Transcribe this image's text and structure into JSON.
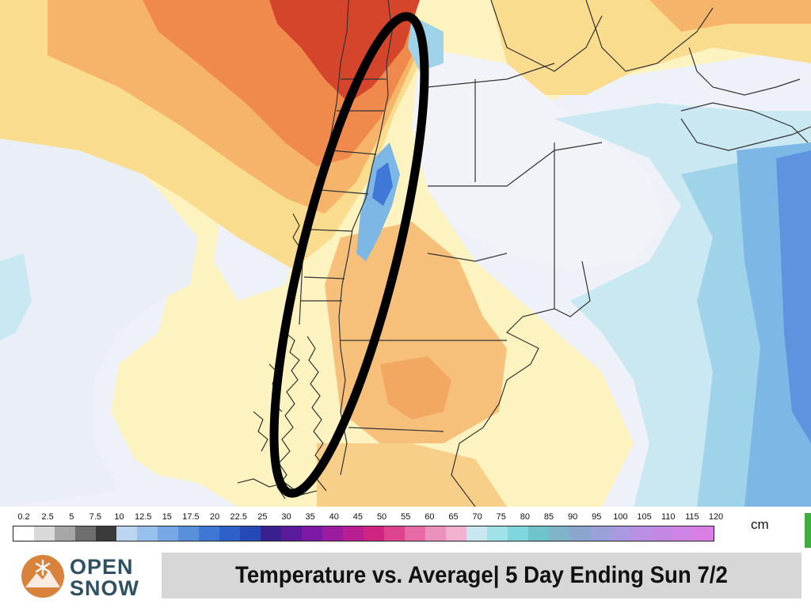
{
  "map": {
    "region": "Southern South America",
    "annotation": "black ellipse outlining the Andes",
    "colors": {
      "warm_strong": "#d4452c",
      "warm": "#ef8a4c",
      "warm_mid": "#f6b36a",
      "warm_light": "#fadc8e",
      "neutral": "#fdf3c0",
      "near_zero": "#eef1f7",
      "cool_light": "#c9e8f2",
      "cool": "#9fd3ea",
      "cool_mid": "#7cb7e6",
      "cool_strong": "#5f93df",
      "cold": "#3f78d6",
      "land_lines": "#333333",
      "ocean_base": "#eef2f8"
    }
  },
  "legend": {
    "ticks": [
      "0.2",
      "2.5",
      "5",
      "7.5",
      "10",
      "12.5",
      "15",
      "17.5",
      "20",
      "22.5",
      "25",
      "30",
      "35",
      "40",
      "45",
      "50",
      "55",
      "60",
      "65",
      "70",
      "75",
      "80",
      "85",
      "90",
      "95",
      "100",
      "105",
      "110",
      "115",
      "120"
    ],
    "unit": "cm",
    "swatches": [
      "#ffffff",
      "#d9d9d9",
      "#a6a6a6",
      "#6e6e6e",
      "#3b3b3b",
      "#bcd6f2",
      "#98c0ec",
      "#77a8e4",
      "#5890dc",
      "#3f78d4",
      "#2d61c9",
      "#2649b8",
      "#3a1f8f",
      "#5a1a9c",
      "#7c1aa6",
      "#9b1c9f",
      "#b81f93",
      "#d02481",
      "#de4390",
      "#e56aa6",
      "#ec90bc",
      "#f1b1cf",
      "#c8e7f0",
      "#9fe2e8",
      "#7fd6dc",
      "#6fc4cc",
      "#7fb3c9",
      "#8aa6cf",
      "#9aa0d9",
      "#aa98e0",
      "#b88fe3",
      "#c488e4",
      "#cf83e4",
      "#d97ee3"
    ]
  },
  "branding": {
    "line1": "OPEN",
    "line2": "SNOW",
    "logo_icon": "snowflake-mountain-icon",
    "logo_color": "#d9823b"
  },
  "title": "Temperature vs. Average| 5 Day Ending Sun 7/2"
}
